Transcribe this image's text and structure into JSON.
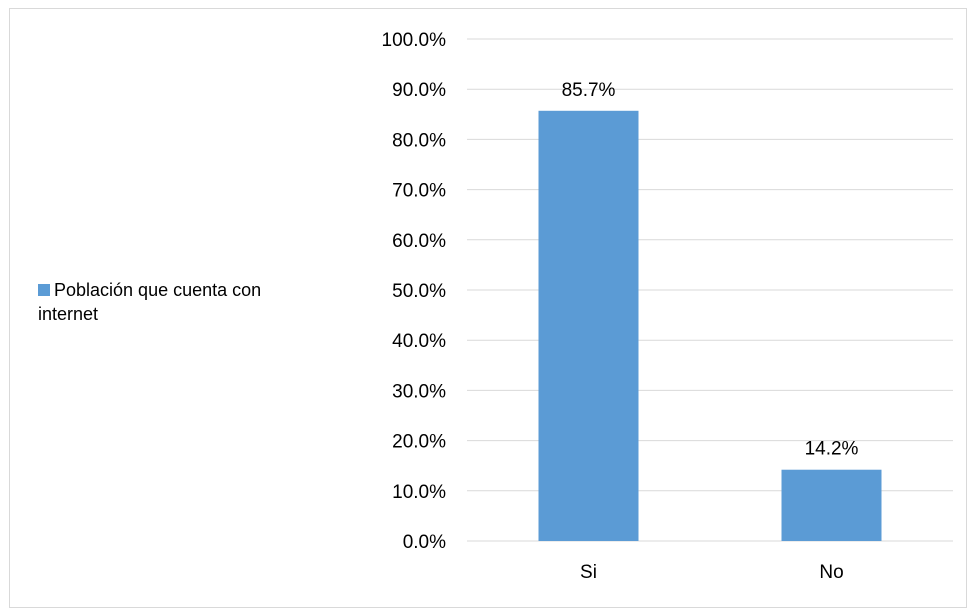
{
  "chart_data": {
    "type": "bar",
    "categories": [
      "Si",
      "No"
    ],
    "series": [
      {
        "name": "Población que cuenta con internet",
        "values": [
          85.7,
          14.2
        ],
        "color": "#5b9bd5"
      }
    ],
    "data_labels": [
      "85.7%",
      "14.2%"
    ],
    "y_ticks": [
      "0.0%",
      "10.0%",
      "20.0%",
      "30.0%",
      "40.0%",
      "50.0%",
      "60.0%",
      "70.0%",
      "80.0%",
      "90.0%",
      "100.0%"
    ],
    "ylim": [
      0,
      100
    ],
    "grid": true,
    "legend": {
      "placement": "left",
      "line1": "Población que cuenta con",
      "line2": "internet"
    },
    "title": "",
    "xlabel": "",
    "ylabel": ""
  }
}
